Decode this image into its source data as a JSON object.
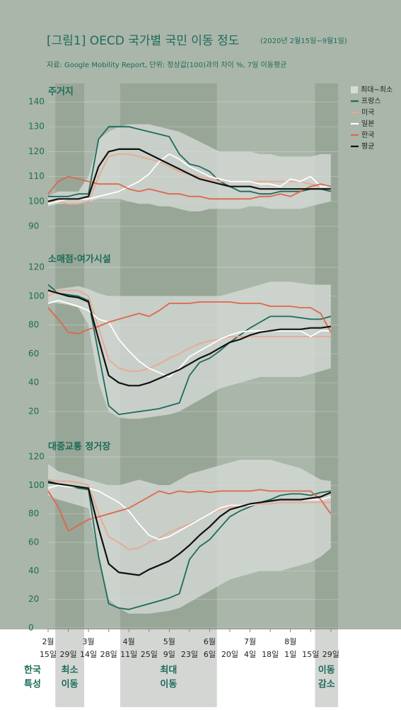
{
  "chart_data": {
    "type": "line",
    "title": "[그림1] OECD 국가별 국민 이동 정도",
    "title_note": "(2020년 2월15일~9월1일)",
    "subtitle": "자료: Google Mobility Report, 단위: 정상값(100)과의 차이 %, 7일 이동평균",
    "x": [
      0,
      7,
      14,
      21,
      28,
      35,
      42,
      49,
      56,
      63,
      70,
      77,
      84,
      91,
      98,
      105,
      112,
      119,
      126,
      133,
      140,
      147,
      154,
      161,
      168,
      175,
      182,
      189,
      196
    ],
    "xlim": [
      0,
      201
    ],
    "xticks": [
      {
        "value": 0,
        "label": "15일"
      },
      {
        "value": 14,
        "label": "29일"
      },
      {
        "value": 28,
        "label": "14일"
      },
      {
        "value": 42,
        "label": "28일"
      },
      {
        "value": 56,
        "label": "11일"
      },
      {
        "value": 70,
        "label": "25일"
      },
      {
        "value": 84,
        "label": "9일"
      },
      {
        "value": 98,
        "label": "23일"
      },
      {
        "value": 112,
        "label": "6일"
      },
      {
        "value": 126,
        "label": "20일"
      },
      {
        "value": 140,
        "label": "4일"
      },
      {
        "value": 154,
        "label": "18일"
      },
      {
        "value": 168,
        "label": "1일"
      },
      {
        "value": 182,
        "label": "15일"
      },
      {
        "value": 196,
        "label": "29일"
      }
    ],
    "month_labels": [
      {
        "value": 0,
        "label": "2월"
      },
      {
        "value": 28,
        "label": "3월"
      },
      {
        "value": 56,
        "label": "4월"
      },
      {
        "value": 84,
        "label": "5월"
      },
      {
        "value": 112,
        "label": "6월"
      },
      {
        "value": 140,
        "label": "7월"
      },
      {
        "value": 168,
        "label": "8월"
      }
    ],
    "side_label": [
      "한국",
      "특성"
    ],
    "periods": [
      {
        "start": 5,
        "end": 25,
        "label": [
          "최소",
          "이동"
        ]
      },
      {
        "start": 50,
        "end": 117,
        "label": [
          "최대",
          "이동"
        ]
      },
      {
        "start": 185,
        "end": 201,
        "label": [
          "이동",
          "감소"
        ]
      }
    ],
    "band": {
      "name": "최대~최소",
      "color": "#d8dbd8"
    },
    "series": [
      {
        "name": "프랑스",
        "color": "#1d6b5b"
      },
      {
        "name": "미국",
        "color": "#eaa891"
      },
      {
        "name": "일본",
        "color": "#ffffff"
      },
      {
        "name": "한국",
        "color": "#e0664c"
      },
      {
        "name": "평균",
        "color": "#111111"
      }
    ],
    "panels": [
      {
        "title": "주거지",
        "ylim": [
          90,
          140
        ],
        "yticks": [
          90,
          100,
          110,
          120,
          130,
          140
        ],
        "band_max": [
          102,
          104,
          104,
          104,
          110,
          125,
          128,
          130,
          131,
          131,
          131,
          130,
          129,
          128,
          126,
          124,
          122,
          120,
          120,
          120,
          120,
          119,
          119,
          118,
          118,
          118,
          118,
          119,
          119
        ],
        "band_min": [
          98,
          99,
          99,
          99,
          100,
          101,
          101,
          101,
          100,
          99,
          99,
          98,
          98,
          97,
          96,
          96,
          97,
          97,
          97,
          97,
          98,
          98,
          97,
          97,
          97,
          97,
          98,
          99,
          100
        ],
        "series_values": [
          [
            102,
            102,
            102,
            103,
            103,
            125,
            130,
            130,
            130,
            129,
            128,
            127,
            126,
            119,
            115,
            114,
            112,
            108,
            106,
            104,
            104,
            103,
            103,
            104,
            104,
            104,
            105,
            105,
            104
          ],
          [
            100,
            100,
            99,
            99,
            100,
            110,
            118,
            119,
            119,
            118,
            117,
            116,
            114,
            112,
            111,
            110,
            109,
            108,
            108,
            108,
            108,
            108,
            108,
            108,
            108,
            108,
            107,
            106,
            106
          ],
          [
            99,
            100,
            101,
            101,
            101,
            102,
            103,
            104,
            106,
            108,
            111,
            116,
            119,
            117,
            114,
            112,
            110,
            109,
            108,
            108,
            108,
            107,
            107,
            106,
            109,
            108,
            110,
            106,
            106
          ],
          [
            103,
            108,
            110,
            109,
            108,
            107,
            107,
            107,
            105,
            104,
            105,
            104,
            103,
            103,
            102,
            102,
            101,
            101,
            101,
            101,
            101,
            102,
            102,
            103,
            102,
            104,
            106,
            107,
            106
          ],
          [
            100,
            101,
            101,
            101,
            102,
            114,
            120,
            121,
            121,
            121,
            119,
            117,
            115,
            113,
            111,
            109,
            108,
            107,
            106,
            106,
            106,
            105,
            105,
            105,
            105,
            105,
            105,
            105,
            105
          ]
        ]
      },
      {
        "title": "소매점·여가시설",
        "ylim": [
          20,
          120
        ],
        "yticks": [
          20,
          40,
          60,
          80,
          100,
          120
        ],
        "band_max": [
          104,
          105,
          106,
          107,
          105,
          102,
          100,
          100,
          100,
          100,
          100,
          100,
          100,
          100,
          100,
          100,
          100,
          100,
          102,
          104,
          106,
          108,
          110,
          110,
          110,
          109,
          108,
          108,
          108
        ],
        "band_min": [
          96,
          95,
          94,
          92,
          80,
          40,
          20,
          16,
          15,
          15,
          16,
          17,
          18,
          20,
          24,
          28,
          32,
          36,
          38,
          40,
          42,
          44,
          44,
          44,
          44,
          44,
          46,
          48,
          50
        ],
        "series_values": [
          [
            108,
            102,
            101,
            100,
            97,
            60,
            24,
            18,
            19,
            20,
            21,
            22,
            24,
            26,
            45,
            54,
            57,
            62,
            68,
            73,
            78,
            82,
            86,
            86,
            86,
            85,
            84,
            84,
            86
          ],
          [
            100,
            104,
            104,
            104,
            100,
            78,
            56,
            50,
            48,
            48,
            50,
            53,
            57,
            60,
            64,
            67,
            69,
            70,
            72,
            72,
            72,
            72,
            72,
            72,
            72,
            72,
            72,
            72,
            72
          ],
          [
            95,
            97,
            95,
            93,
            90,
            84,
            82,
            70,
            62,
            55,
            50,
            47,
            44,
            50,
            58,
            62,
            66,
            70,
            73,
            75,
            76,
            76,
            76,
            76,
            76,
            76,
            72,
            76,
            76
          ],
          [
            92,
            84,
            75,
            74,
            77,
            79,
            82,
            84,
            86,
            88,
            86,
            90,
            95,
            95,
            95,
            96,
            96,
            96,
            96,
            95,
            95,
            95,
            93,
            93,
            93,
            92,
            92,
            88,
            75
          ],
          [
            104,
            102,
            100,
            99,
            96,
            70,
            45,
            40,
            38,
            38,
            40,
            43,
            46,
            49,
            53,
            57,
            60,
            64,
            68,
            70,
            73,
            75,
            76,
            77,
            77,
            77,
            78,
            78,
            79
          ]
        ]
      },
      {
        "title": "대중교통 정거장",
        "ylim": [
          0,
          120
        ],
        "yticks": [
          0,
          20,
          40,
          60,
          80,
          100,
          120
        ],
        "band_max": [
          115,
          110,
          108,
          106,
          104,
          102,
          100,
          100,
          102,
          104,
          102,
          100,
          100,
          104,
          108,
          110,
          112,
          114,
          116,
          118,
          118,
          118,
          118,
          116,
          114,
          112,
          108,
          104,
          103
        ],
        "band_min": [
          93,
          90,
          88,
          86,
          84,
          50,
          20,
          14,
          10,
          10,
          10,
          11,
          12,
          14,
          18,
          22,
          26,
          30,
          34,
          36,
          38,
          40,
          40,
          40,
          42,
          44,
          46,
          50,
          56
        ],
        "series_values": [
          [
            103,
            101,
            100,
            98,
            97,
            50,
            17,
            14,
            13,
            15,
            17,
            19,
            21,
            24,
            48,
            57,
            62,
            70,
            78,
            82,
            85,
            88,
            90,
            93,
            94,
            94,
            93,
            95,
            96
          ],
          [
            104,
            103,
            103,
            102,
            100,
            80,
            64,
            60,
            55,
            56,
            60,
            63,
            67,
            70,
            73,
            76,
            80,
            83,
            85,
            85,
            86,
            87,
            87,
            88,
            88,
            88,
            88,
            88,
            88
          ],
          [
            98,
            100,
            99,
            99,
            98,
            96,
            92,
            88,
            82,
            73,
            65,
            62,
            64,
            68,
            72,
            76,
            80,
            84,
            86,
            86,
            86,
            88,
            89,
            90,
            90,
            90,
            90,
            90,
            92
          ],
          [
            96,
            85,
            68,
            72,
            76,
            78,
            80,
            82,
            84,
            88,
            92,
            96,
            94,
            96,
            95,
            96,
            95,
            96,
            96,
            96,
            96,
            97,
            96,
            96,
            96,
            96,
            96,
            90,
            80
          ],
          [
            102,
            101,
            100,
            99,
            98,
            70,
            45,
            39,
            38,
            37,
            41,
            44,
            47,
            52,
            58,
            65,
            71,
            78,
            83,
            85,
            87,
            88,
            89,
            90,
            90,
            90,
            91,
            92,
            95
          ]
        ]
      }
    ]
  }
}
